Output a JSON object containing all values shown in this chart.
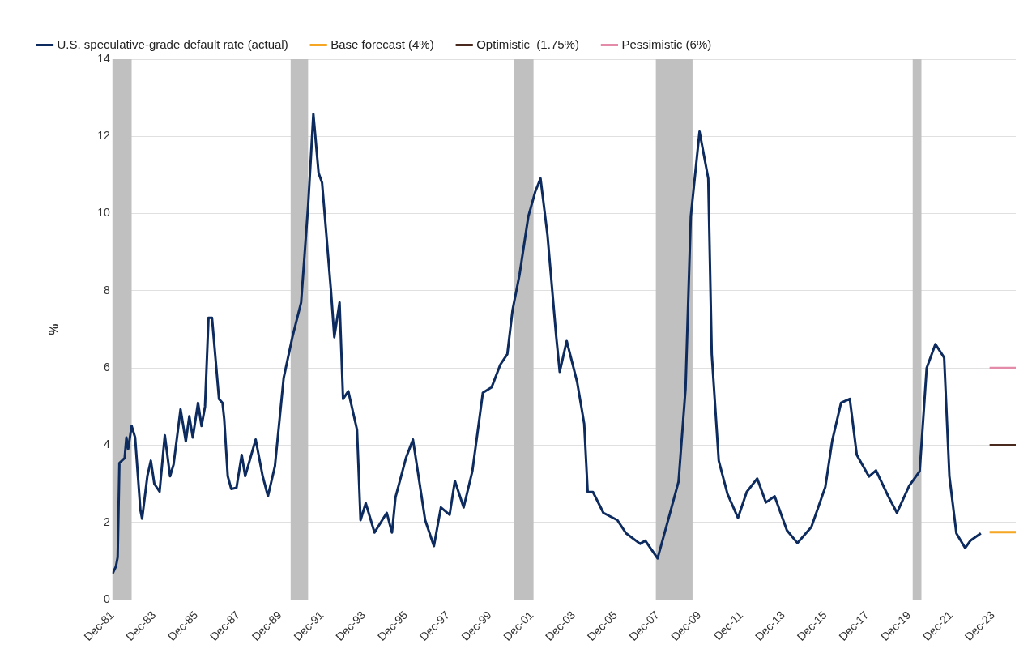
{
  "chart_data": {
    "type": "line",
    "ylabel": "%",
    "legend": "top left",
    "grid": "y",
    "marker": "none",
    "line_style": "solid",
    "xlim": [
      "1981-12",
      "2025-01"
    ],
    "ylim": [
      0,
      14
    ],
    "yticks": [
      0,
      2,
      4,
      6,
      8,
      10,
      12,
      14
    ],
    "xticks": [
      {
        "value": "1981-12",
        "label": "Dec-81"
      },
      {
        "value": "1983-12",
        "label": "Dec-83"
      },
      {
        "value": "1985-12",
        "label": "Dec-85"
      },
      {
        "value": "1987-12",
        "label": "Dec-87"
      },
      {
        "value": "1989-12",
        "label": "Dec-89"
      },
      {
        "value": "1991-12",
        "label": "Dec-91"
      },
      {
        "value": "1993-12",
        "label": "Dec-93"
      },
      {
        "value": "1995-12",
        "label": "Dec-95"
      },
      {
        "value": "1997-12",
        "label": "Dec-97"
      },
      {
        "value": "1999-12",
        "label": "Dec-99"
      },
      {
        "value": "2001-12",
        "label": "Dec-01"
      },
      {
        "value": "2003-12",
        "label": "Dec-03"
      },
      {
        "value": "2005-12",
        "label": "Dec-05"
      },
      {
        "value": "2007-12",
        "label": "Dec-07"
      },
      {
        "value": "2009-12",
        "label": "Dec-09"
      },
      {
        "value": "2011-12",
        "label": "Dec-11"
      },
      {
        "value": "2013-12",
        "label": "Dec-13"
      },
      {
        "value": "2015-12",
        "label": "Dec-15"
      },
      {
        "value": "2017-12",
        "label": "Dec-17"
      },
      {
        "value": "2019-12",
        "label": "Dec-19"
      },
      {
        "value": "2021-12",
        "label": "Dec-21"
      },
      {
        "value": "2023-12",
        "label": "Dec-23"
      }
    ],
    "bands": [
      {
        "axis": "x",
        "from": "1981-12",
        "to": "1982-11",
        "color": "#c0c0c0"
      },
      {
        "axis": "x",
        "from": "1990-06",
        "to": "1991-04",
        "color": "#c0c0c0"
      },
      {
        "axis": "x",
        "from": "2001-02",
        "to": "2002-01",
        "color": "#c0c0c0"
      },
      {
        "axis": "x",
        "from": "2007-11",
        "to": "2009-08",
        "color": "#c0c0c0"
      },
      {
        "axis": "x",
        "from": "2020-02",
        "to": "2020-07",
        "color": "#c0c0c0"
      }
    ],
    "series": [
      {
        "name": "U.S. speculative-grade default rate (actual)",
        "color": "#0d2b5e",
        "x": [
          "1981-12",
          "1982-02",
          "1982-03",
          "1982-04",
          "1982-07",
          "1982-08",
          "1982-09",
          "1982-11",
          "1983-01",
          "1983-04",
          "1983-05",
          "1983-08",
          "1983-10",
          "1983-12",
          "1984-03",
          "1984-06",
          "1984-09",
          "1984-11",
          "1985-03",
          "1985-06",
          "1985-08",
          "1985-10",
          "1986-01",
          "1986-03",
          "1986-05",
          "1986-07",
          "1986-09",
          "1987-01",
          "1987-03",
          "1987-04",
          "1987-06",
          "1987-08",
          "1987-11",
          "1988-02",
          "1988-04",
          "1988-10",
          "1989-02",
          "1989-05",
          "1989-09",
          "1990-02",
          "1990-07",
          "1990-12",
          "1991-04",
          "1991-07",
          "1991-10",
          "1991-12",
          "1992-05",
          "1992-07",
          "1992-10",
          "1992-12",
          "1993-03",
          "1993-08",
          "1993-10",
          "1994-01",
          "1994-06",
          "1995-01",
          "1995-04",
          "1995-06",
          "1995-12",
          "1996-04",
          "1996-11",
          "1997-04",
          "1997-08",
          "1998-01",
          "1998-04",
          "1998-09",
          "1999-02",
          "1999-08",
          "2000-01",
          "2000-06",
          "2000-10",
          "2001-01",
          "2001-05",
          "2001-10",
          "2002-02",
          "2002-05",
          "2002-09",
          "2003-02",
          "2003-04",
          "2003-08",
          "2004-02",
          "2004-06",
          "2004-08",
          "2004-11",
          "2005-05",
          "2006-01",
          "2006-06",
          "2007-02",
          "2007-05",
          "2007-12",
          "2008-06",
          "2008-12",
          "2009-04",
          "2009-07",
          "2009-12",
          "2010-05",
          "2010-07",
          "2010-11",
          "2011-04",
          "2011-10",
          "2012-03",
          "2012-09",
          "2013-02",
          "2013-07",
          "2014-02",
          "2014-08",
          "2015-04",
          "2015-12",
          "2016-04",
          "2016-09",
          "2017-02",
          "2017-06",
          "2018-01",
          "2018-05",
          "2018-12",
          "2019-05",
          "2019-12",
          "2020-06",
          "2020-10",
          "2021-03",
          "2021-08",
          "2021-11",
          "2022-03",
          "2022-08",
          "2022-11",
          "2023-05"
        ],
        "values": [
          0.67,
          0.86,
          1.1,
          3.54,
          3.67,
          4.2,
          3.9,
          4.5,
          4.2,
          2.33,
          2.1,
          3.2,
          3.6,
          3.0,
          2.8,
          4.26,
          3.2,
          3.5,
          4.93,
          4.1,
          4.75,
          4.2,
          5.1,
          4.5,
          5.0,
          7.3,
          7.3,
          5.2,
          5.1,
          4.67,
          3.2,
          2.87,
          2.9,
          3.75,
          3.2,
          4.15,
          3.2,
          2.68,
          3.46,
          5.74,
          6.8,
          7.7,
          10.2,
          12.58,
          11.05,
          10.8,
          8.05,
          6.8,
          7.7,
          5.2,
          5.4,
          4.4,
          2.06,
          2.5,
          1.74,
          2.25,
          1.74,
          2.65,
          3.67,
          4.15,
          2.06,
          1.39,
          2.39,
          2.2,
          3.08,
          2.39,
          3.33,
          5.36,
          5.5,
          6.09,
          6.36,
          7.5,
          8.42,
          9.92,
          10.57,
          10.91,
          9.44,
          6.81,
          5.9,
          6.7,
          5.63,
          4.56,
          2.79,
          2.79,
          2.25,
          2.06,
          1.72,
          1.45,
          1.53,
          1.07,
          2.06,
          3.06,
          5.47,
          9.92,
          12.12,
          10.91,
          6.36,
          3.6,
          2.74,
          2.12,
          2.79,
          3.14,
          2.52,
          2.68,
          1.8,
          1.47,
          1.88,
          2.92,
          4.13,
          5.1,
          5.2,
          3.75,
          3.19,
          3.35,
          2.68,
          2.25,
          2.95,
          3.33,
          6.0,
          6.62,
          6.27,
          3.2,
          1.72,
          1.34,
          1.53,
          1.72
        ]
      },
      {
        "name": "Base forecast (4%)",
        "color": "#f5a623",
        "x": [
          "2023-10",
          "2025-01"
        ],
        "values": [
          1.75,
          1.75
        ]
      },
      {
        "name": "Optimistic  (1.75%)",
        "color": "#4a2a1e",
        "x": [
          "2023-10",
          "2025-01"
        ],
        "values": [
          4,
          4
        ]
      },
      {
        "name": "Pessimistic (6%)",
        "color": "#e38ba8",
        "x": [
          "2023-10",
          "2025-01"
        ],
        "values": [
          6,
          6
        ]
      }
    ]
  }
}
